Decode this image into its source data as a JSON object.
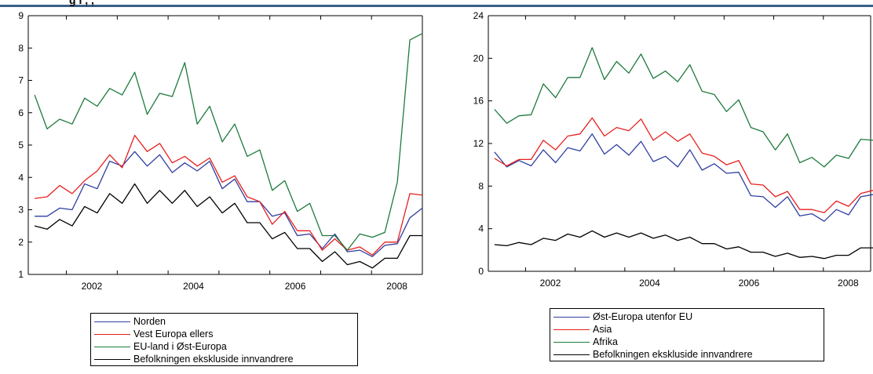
{
  "header_text": "g   i  ,   ,  ",
  "chart_data": [
    {
      "type": "line",
      "x_ticks": [
        "2002",
        "2004",
        "2006",
        "2008"
      ],
      "y_ticks": [
        "1",
        "2",
        "3",
        "4",
        "5",
        "6",
        "7",
        "8",
        "9"
      ],
      "ylim": [
        1,
        9
      ],
      "grid": false,
      "legend_position": "bottom",
      "series": [
        {
          "name": "Norden",
          "color": "#2f3fa0",
          "values": [
            2.8,
            2.8,
            3.05,
            3.0,
            3.8,
            3.65,
            4.5,
            4.35,
            4.8,
            4.35,
            4.7,
            4.15,
            4.45,
            4.2,
            4.5,
            3.65,
            3.95,
            3.25,
            3.25,
            2.8,
            2.9,
            2.2,
            2.25,
            1.8,
            2.25,
            1.7,
            1.75,
            1.55,
            1.9,
            1.95,
            2.75,
            3.05
          ]
        },
        {
          "name": "Vest Europa ellers",
          "color": "#e81f1f",
          "values": [
            3.35,
            3.4,
            3.75,
            3.5,
            3.9,
            4.2,
            4.7,
            4.3,
            5.3,
            4.8,
            5.05,
            4.45,
            4.65,
            4.35,
            4.6,
            3.85,
            4.05,
            3.4,
            3.25,
            2.55,
            2.95,
            2.35,
            2.35,
            1.75,
            2.1,
            1.75,
            1.85,
            1.6,
            2.0,
            2.0,
            3.5,
            3.45
          ]
        },
        {
          "name": "EU-land i Øst-Europa",
          "color": "#1e7a3c",
          "values": [
            6.55,
            5.5,
            5.8,
            5.65,
            6.45,
            6.2,
            6.75,
            6.55,
            7.25,
            5.95,
            6.6,
            6.5,
            7.55,
            5.65,
            6.2,
            5.1,
            5.65,
            4.65,
            4.85,
            3.6,
            3.9,
            2.95,
            3.2,
            2.2,
            2.2,
            1.75,
            2.25,
            2.15,
            2.3,
            3.85,
            8.25,
            8.45
          ]
        },
        {
          "name": "Befolkningen ekskluside innvandrere",
          "color": "#000000",
          "values": [
            2.5,
            2.4,
            2.7,
            2.5,
            3.1,
            2.9,
            3.5,
            3.2,
            3.8,
            3.2,
            3.6,
            3.2,
            3.6,
            3.1,
            3.4,
            2.9,
            3.2,
            2.6,
            2.6,
            2.1,
            2.3,
            1.8,
            1.8,
            1.4,
            1.7,
            1.3,
            1.4,
            1.2,
            1.5,
            1.5,
            2.2,
            2.2
          ]
        }
      ]
    },
    {
      "type": "line",
      "x_ticks": [
        "2002",
        "2004",
        "2006",
        "2008"
      ],
      "y_ticks": [
        "0",
        "4",
        "8",
        "12",
        "16",
        "20",
        "24"
      ],
      "ylim": [
        0,
        24
      ],
      "grid": false,
      "legend_position": "bottom",
      "series": [
        {
          "name": "Øst-Europa utenfor EU",
          "color": "#2f3fa0",
          "values": [
            11.2,
            9.8,
            10.4,
            9.9,
            11.4,
            10.2,
            11.6,
            11.3,
            12.9,
            11.0,
            11.9,
            10.9,
            12.2,
            10.3,
            10.8,
            9.8,
            11.4,
            9.5,
            10.1,
            9.2,
            9.3,
            7.1,
            7.0,
            6.0,
            7.0,
            5.2,
            5.4,
            4.7,
            5.8,
            5.3,
            7.0,
            7.2
          ]
        },
        {
          "name": "Asia",
          "color": "#e81f1f",
          "values": [
            10.6,
            9.9,
            10.5,
            10.5,
            12.3,
            11.4,
            12.7,
            12.9,
            14.4,
            12.7,
            13.5,
            13.2,
            14.3,
            12.3,
            13.1,
            12.2,
            12.9,
            11.1,
            10.8,
            10.0,
            10.4,
            8.2,
            8.1,
            7.0,
            7.5,
            5.8,
            5.8,
            5.5,
            6.6,
            6.1,
            7.3,
            7.6
          ]
        },
        {
          "name": "Afrika",
          "color": "#1e7a3c",
          "values": [
            15.2,
            13.9,
            14.6,
            14.7,
            17.6,
            16.3,
            18.2,
            18.2,
            21.0,
            18.0,
            19.7,
            18.6,
            20.4,
            18.1,
            18.8,
            17.8,
            19.4,
            16.9,
            16.6,
            15.0,
            16.1,
            13.5,
            13.1,
            11.4,
            12.9,
            10.2,
            10.7,
            9.8,
            10.9,
            10.6,
            12.4,
            12.3
          ]
        },
        {
          "name": "Befolkningen ekskluside innvandrere",
          "color": "#000000",
          "values": [
            2.5,
            2.4,
            2.7,
            2.5,
            3.1,
            2.9,
            3.5,
            3.2,
            3.8,
            3.2,
            3.6,
            3.2,
            3.6,
            3.1,
            3.4,
            2.9,
            3.2,
            2.6,
            2.6,
            2.1,
            2.3,
            1.8,
            1.8,
            1.4,
            1.7,
            1.3,
            1.4,
            1.2,
            1.5,
            1.5,
            2.2,
            2.2
          ]
        }
      ]
    }
  ],
  "legends": [
    {
      "items": [
        "Norden",
        "Vest Europa ellers",
        "EU-land i Øst-Europa",
        "Befolkningen ekskluside innvandrere"
      ]
    },
    {
      "items": [
        "Øst-Europa utenfor EU",
        "Asia",
        "Afrika",
        "Befolkningen ekskluside innvandrere"
      ]
    }
  ]
}
